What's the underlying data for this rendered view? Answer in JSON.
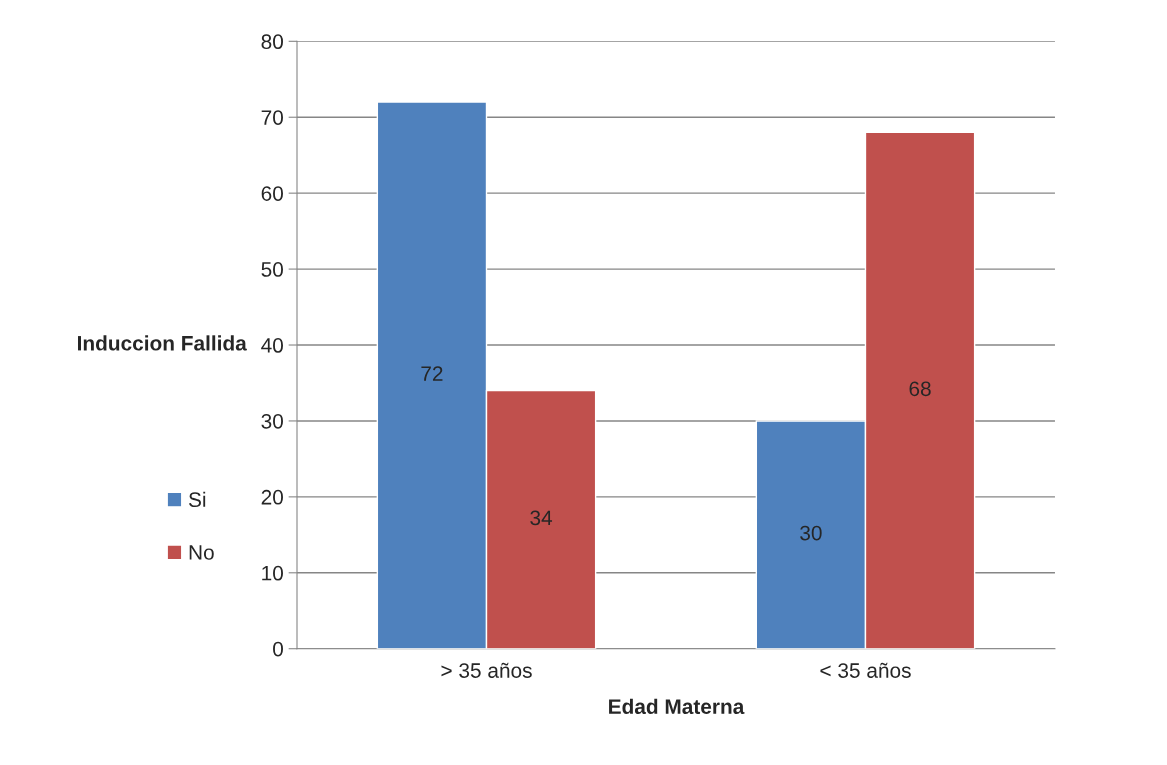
{
  "chart_data": {
    "type": "bar",
    "xlabel": "Edad Materna",
    "ylabel": "Induccion Fallida",
    "categories": [
      "> 35 años",
      "< 35 años"
    ],
    "series": [
      {
        "name": "Si",
        "color": "#4f81bd",
        "values": [
          72,
          30
        ]
      },
      {
        "name": "No",
        "color": "#c0504d",
        "values": [
          34,
          68
        ]
      }
    ],
    "ylim": [
      0,
      80
    ],
    "yticks": [
      0,
      10,
      20,
      30,
      40,
      50,
      60,
      70,
      80
    ],
    "grid": "y",
    "legend": "left",
    "data_labels": true
  }
}
